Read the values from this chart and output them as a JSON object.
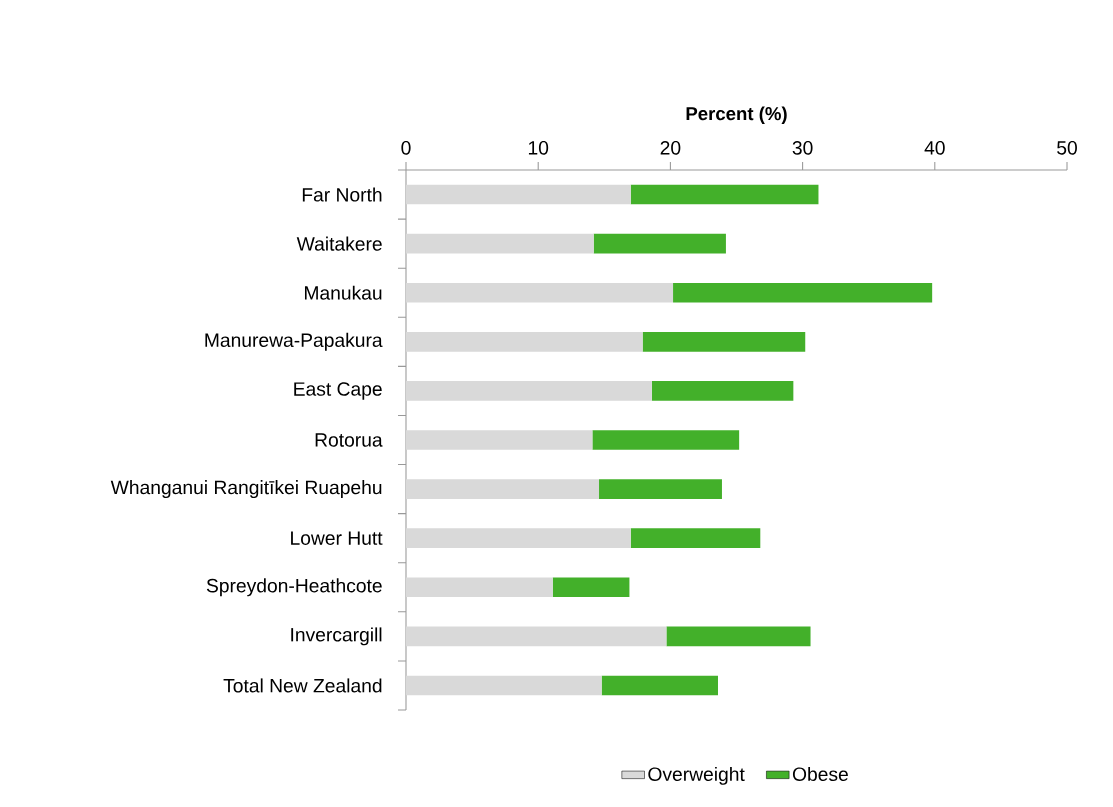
{
  "chart_data": {
    "type": "bar",
    "orientation": "horizontal",
    "stacked": true,
    "xlabel": "Percent (%)",
    "categories": [
      "Far North",
      "Waitakere",
      "Manukau",
      "Manurewa-Papakura",
      "East Cape",
      "Rotorua",
      "Whanganui Rangitīkei Ruapehu",
      "Lower Hutt",
      "Spreydon-Heathcote",
      "Invercargill",
      "Total New Zealand"
    ],
    "series": [
      {
        "name": "Overweight",
        "color": "#d9d9d9",
        "values": [
          17.0,
          14.2,
          20.2,
          17.9,
          18.6,
          14.1,
          14.6,
          17.0,
          11.1,
          19.7,
          14.8
        ]
      },
      {
        "name": "Obese",
        "color": "#43b02a",
        "values": [
          14.2,
          10.0,
          19.6,
          12.3,
          10.7,
          11.1,
          9.3,
          9.8,
          5.8,
          10.9,
          8.8
        ]
      }
    ],
    "xlim": [
      0,
      50
    ],
    "xticks": [
      0,
      10,
      20,
      30,
      40,
      50
    ],
    "legend": "bottom",
    "grid": false
  }
}
